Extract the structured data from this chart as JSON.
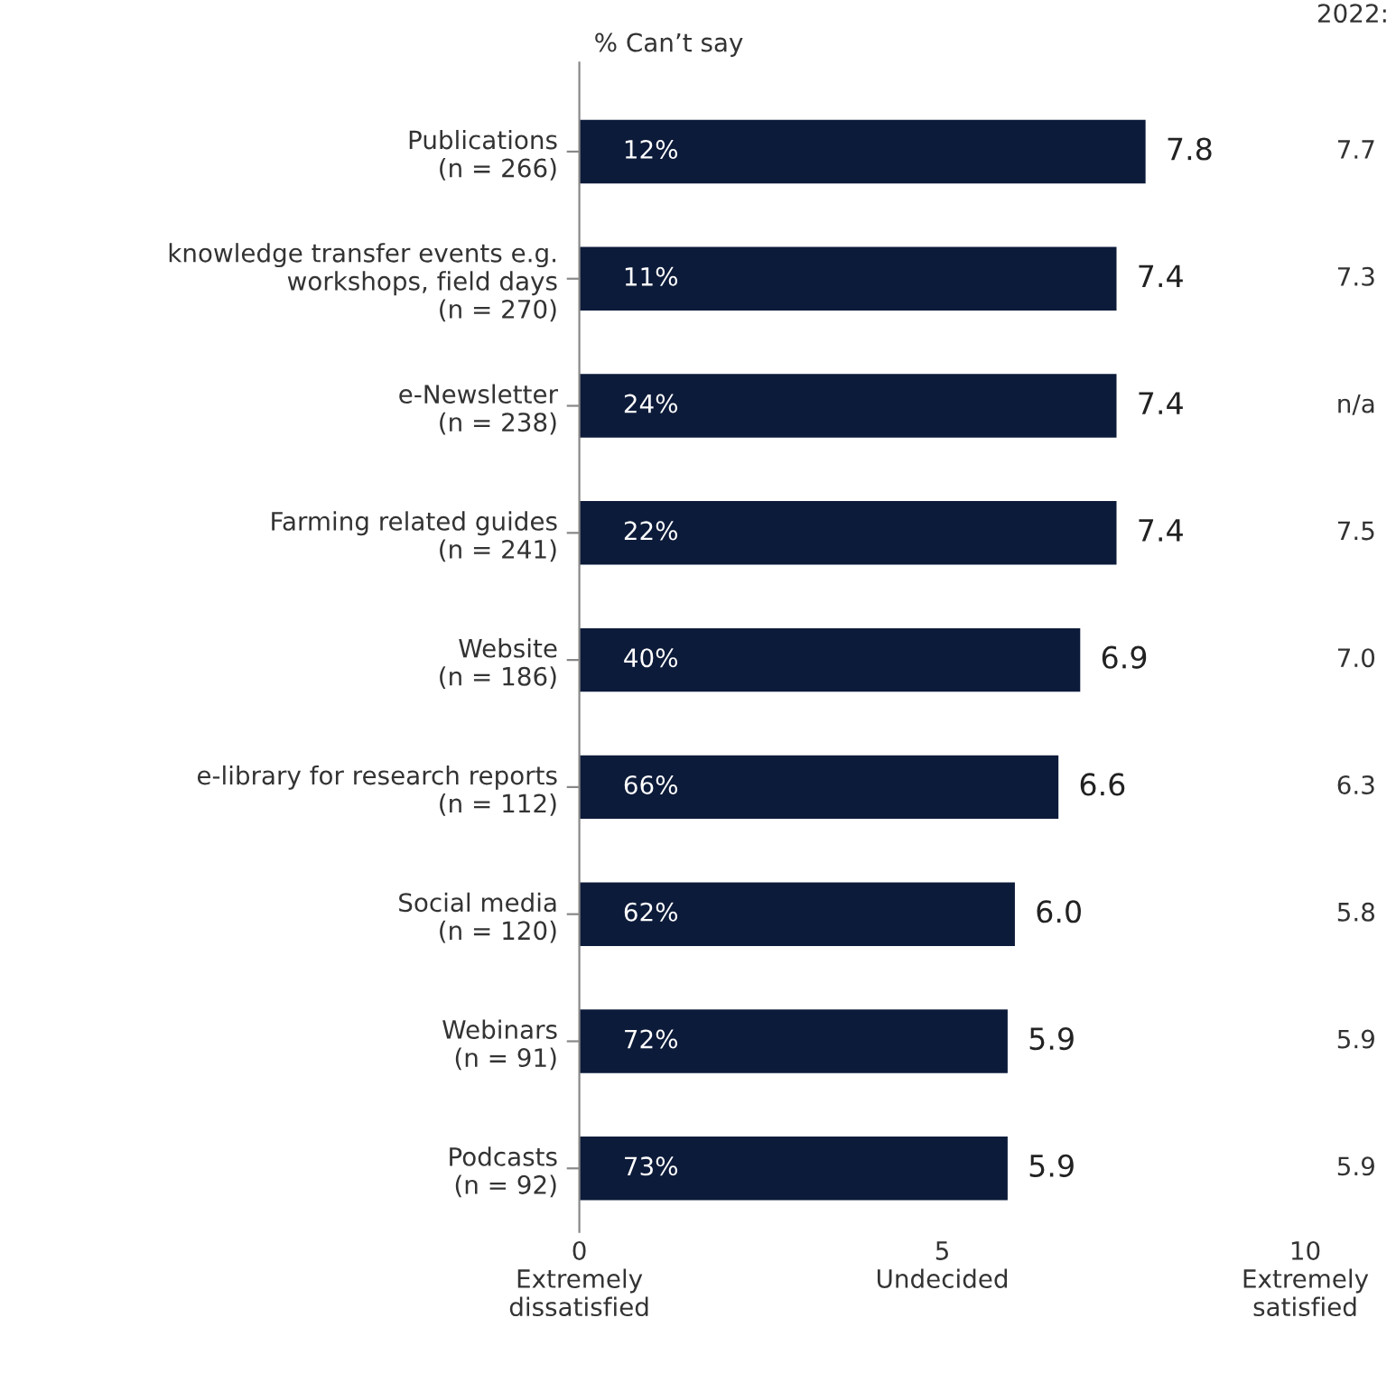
{
  "chart_data": {
    "type": "bar",
    "orientation": "horizontal",
    "categories": [
      "Publications\n(n = 266)",
      "knowledge transfer events e.g.\nworkshops, field days\n(n = 270)",
      "e-Newsletter\n(n = 238)",
      "Farming related guides\n(n = 241)",
      "Website\n(n = 186)",
      "e-library for research reports\n(n = 112)",
      "Social media\n(n = 120)",
      "Webinars\n(n = 91)",
      "Podcasts\n(n = 92)"
    ],
    "values": [
      7.8,
      7.4,
      7.4,
      7.4,
      6.9,
      6.6,
      6.0,
      5.9,
      5.9
    ],
    "value_labels": [
      "7.8",
      "7.4",
      "7.4",
      "7.4",
      "6.9",
      "6.6",
      "6.0",
      "5.9",
      "5.9"
    ],
    "color": "#0d1b3a",
    "xlim": [
      0,
      10
    ],
    "xticks": [
      {
        "value": 0,
        "label": "0\nExtremely\ndissatisfied"
      },
      {
        "value": 5,
        "label": "5\nUndecided"
      },
      {
        "value": 10,
        "label": "10\nExtremely\nsatisfied"
      }
    ],
    "grid": false,
    "annotations": [
      "% Can’t say",
      "2022:",
      "12%",
      "11%",
      "24%",
      "22%",
      "40%",
      "66%",
      "62%",
      "72%",
      "73%",
      "7.7",
      "7.3",
      "n/a",
      "7.5",
      "7.0",
      "6.3",
      "5.8",
      "5.9",
      "5.9"
    ]
  }
}
